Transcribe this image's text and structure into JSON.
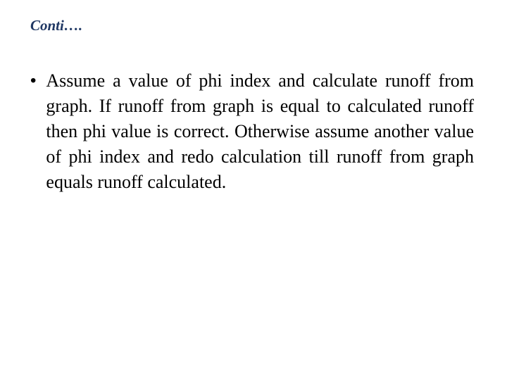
{
  "slide": {
    "title": "Conti….",
    "title_color": "#203864",
    "title_fontsize": 21,
    "title_style": "italic bold",
    "background_color": "#ffffff",
    "bullets": [
      {
        "marker": "•",
        "text": "Assume a value of phi index and calculate runoff from graph. If runoff from graph is equal to calculated runoff then phi value is correct. Otherwise assume another value of phi index and redo calculation till runoff from graph equals runoff calculated."
      }
    ],
    "body_fontsize": 26,
    "body_color": "#000000",
    "body_font": "Comic Sans MS",
    "line_height": 36,
    "text_align": "justify"
  }
}
